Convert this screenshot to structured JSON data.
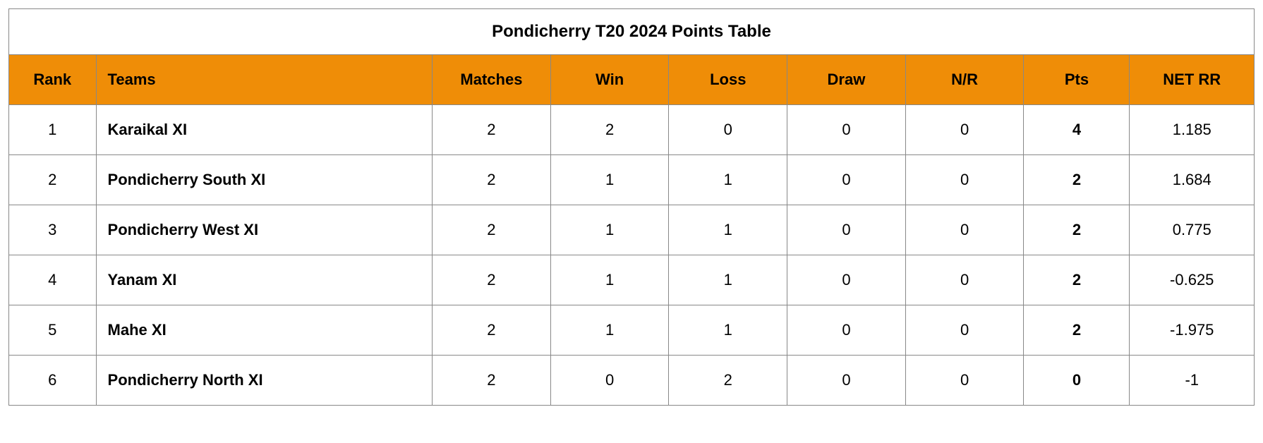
{
  "table": {
    "title": "Pondicherry T20 2024 Points Table",
    "title_fontsize": 24,
    "title_fontweight": "bold",
    "header_bg": "#ef8d07",
    "header_fg": "#000000",
    "header_fontsize": 22,
    "header_fontweight": "bold",
    "cell_fontsize": 22,
    "cell_bg": "#ffffff",
    "border_color": "#888888",
    "columns": {
      "rank": {
        "label": "Rank",
        "align": "center",
        "width_pct": 7
      },
      "teams": {
        "label": "Teams",
        "align": "left",
        "width_pct": 27,
        "cell_fontweight": "bold"
      },
      "matches": {
        "label": "Matches",
        "align": "center",
        "width_pct": 9.5
      },
      "win": {
        "label": "Win",
        "align": "center",
        "width_pct": 9.5
      },
      "loss": {
        "label": "Loss",
        "align": "center",
        "width_pct": 9.5
      },
      "draw": {
        "label": "Draw",
        "align": "center",
        "width_pct": 9.5
      },
      "nr": {
        "label": "N/R",
        "align": "center",
        "width_pct": 9.5
      },
      "pts": {
        "label": "Pts",
        "align": "center",
        "width_pct": 8.5,
        "cell_fontweight": "bold"
      },
      "nrr": {
        "label": "NET RR",
        "align": "center",
        "width_pct": 10
      }
    },
    "rows": [
      {
        "rank": "1",
        "teams": "Karaikal XI",
        "matches": "2",
        "win": "2",
        "loss": "0",
        "draw": "0",
        "nr": "0",
        "pts": "4",
        "nrr": "1.185"
      },
      {
        "rank": "2",
        "teams": "Pondicherry South XI",
        "matches": "2",
        "win": "1",
        "loss": "1",
        "draw": "0",
        "nr": "0",
        "pts": "2",
        "nrr": "1.684"
      },
      {
        "rank": "3",
        "teams": "Pondicherry West XI",
        "matches": "2",
        "win": "1",
        "loss": "1",
        "draw": "0",
        "nr": "0",
        "pts": "2",
        "nrr": "0.775"
      },
      {
        "rank": "4",
        "teams": "Yanam XI",
        "matches": "2",
        "win": "1",
        "loss": "1",
        "draw": "0",
        "nr": "0",
        "pts": "2",
        "nrr": "-0.625"
      },
      {
        "rank": "5",
        "teams": "Mahe XI",
        "matches": "2",
        "win": "1",
        "loss": "1",
        "draw": "0",
        "nr": "0",
        "pts": "2",
        "nrr": "-1.975"
      },
      {
        "rank": "6",
        "teams": "Pondicherry North XI",
        "matches": "2",
        "win": "0",
        "loss": "2",
        "draw": "0",
        "nr": "0",
        "pts": "0",
        "nrr": "-1"
      }
    ]
  }
}
